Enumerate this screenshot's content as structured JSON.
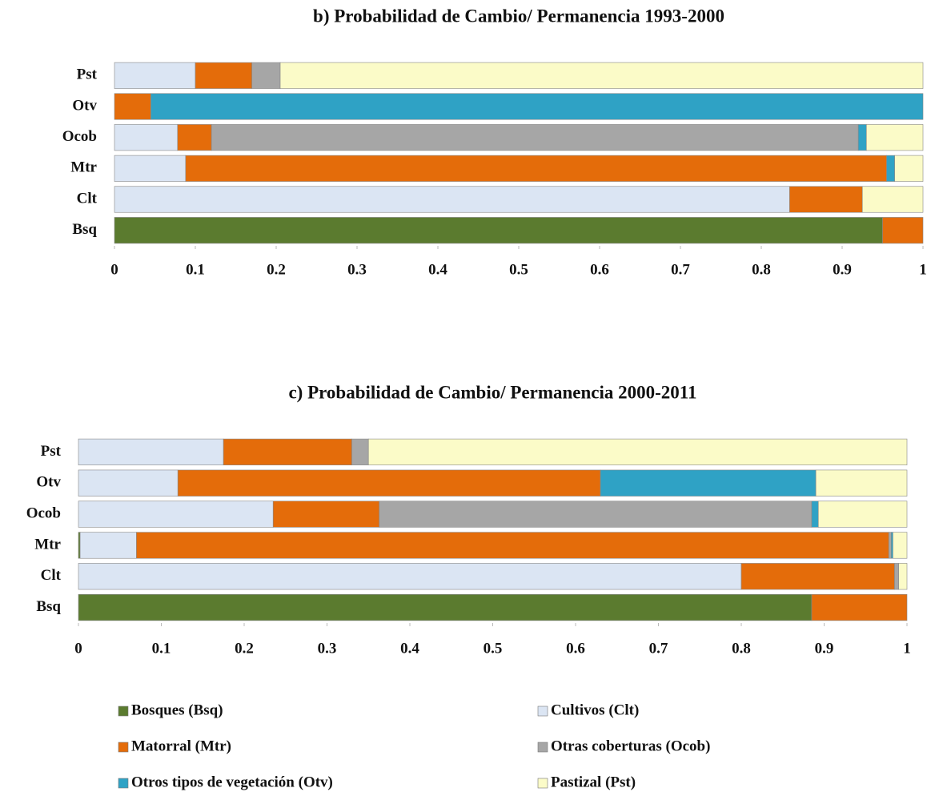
{
  "chart_data": [
    {
      "type": "stacked-bar-horizontal",
      "title": "b) Probabilidad  de Cambio/  Permanencia   1993-2000",
      "categories": [
        "Bsq",
        "Clt",
        "Mtr",
        "Ocob",
        "Otv",
        "Pst"
      ],
      "series": [
        {
          "name": "Bosques (Bsq)",
          "color": "#5b7b2f",
          "values": [
            0.95,
            0,
            0,
            0,
            0,
            0
          ]
        },
        {
          "name": "Cultivos (Clt)",
          "color": "#dbe5f3",
          "values": [
            0,
            0.835,
            0.088,
            0.078,
            0,
            0.1
          ]
        },
        {
          "name": "Matorral (Mtr)",
          "color": "#e46c0a",
          "values": [
            0.05,
            0.09,
            0.867,
            0.042,
            0.045,
            0.07
          ]
        },
        {
          "name": "Otras coberturas (Ocob)",
          "color": "#a6a6a6",
          "values": [
            0,
            0,
            0,
            0.8,
            0,
            0.035
          ]
        },
        {
          "name": "Otros tipos de vegetación (Otv)",
          "color": "#2fa2c5",
          "values": [
            0,
            0,
            0.01,
            0.01,
            0.955,
            0
          ]
        },
        {
          "name": "Pastizal (Pst)",
          "color": "#fbfbc8",
          "values": [
            0,
            0.075,
            0.035,
            0.07,
            0,
            0.795
          ]
        }
      ],
      "xlim": [
        0,
        1
      ],
      "xticks": [
        0,
        0.1,
        0.2,
        0.3,
        0.4,
        0.5,
        0.6,
        0.7,
        0.8,
        0.9,
        1
      ]
    },
    {
      "type": "stacked-bar-horizontal",
      "title": "c) Probabilidad  de Cambio/  Permanencia   2000-2011",
      "categories": [
        "Bsq",
        "Clt",
        "Mtr",
        "Ocob",
        "Otv",
        "Pst"
      ],
      "series": [
        {
          "values": [
            0.885,
            0,
            0.002,
            0,
            0,
            0
          ]
        },
        {
          "values": [
            0,
            0.8,
            0.068,
            0.235,
            0.12,
            0.175
          ]
        },
        {
          "values": [
            0.115,
            0.185,
            0.908,
            0.128,
            0.51,
            0.155
          ]
        },
        {
          "values": [
            0,
            0.005,
            0.003,
            0.522,
            0,
            0.02
          ]
        },
        {
          "values": [
            0,
            0,
            0.002,
            0.008,
            0.26,
            0
          ]
        },
        {
          "values": [
            0,
            0.01,
            0.017,
            0.107,
            0.11,
            0.65
          ]
        }
      ],
      "xlim": [
        0,
        1
      ],
      "xticks": [
        0,
        0.1,
        0.2,
        0.3,
        0.4,
        0.5,
        0.6,
        0.7,
        0.8,
        0.9,
        1
      ]
    }
  ]
}
